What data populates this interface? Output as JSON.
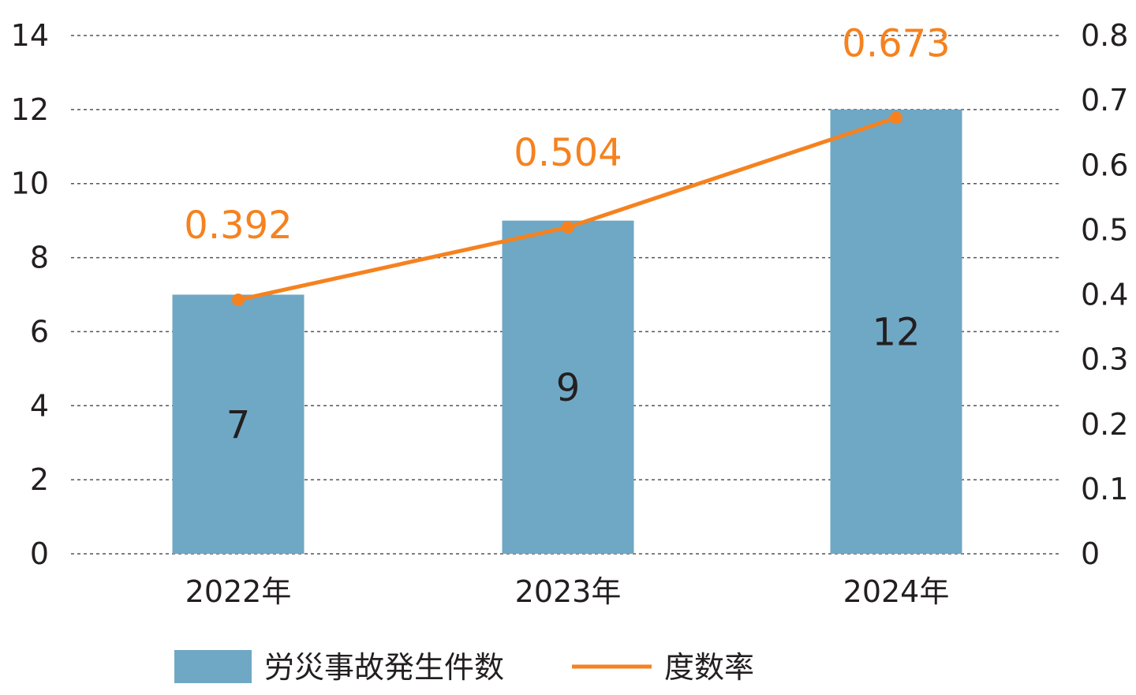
{
  "chart_data": {
    "type": "bar",
    "categories": [
      "2022年",
      "2023年",
      "2024年"
    ],
    "series": [
      {
        "name": "労災事故発生件数",
        "type": "bar",
        "axis": "left",
        "values": [
          7,
          9,
          12
        ],
        "color": "#6fa8c5"
      },
      {
        "name": "度数率",
        "type": "line",
        "axis": "right",
        "values": [
          0.392,
          0.504,
          0.673
        ],
        "labels": [
          "0.392",
          "0.504",
          "0.673"
        ],
        "color": "#f5821f"
      }
    ],
    "y_left": {
      "ylim": [
        0,
        14
      ],
      "ticks": [
        "0",
        "2",
        "4",
        "6",
        "8",
        "10",
        "12",
        "14"
      ]
    },
    "y_right": {
      "ylim": [
        0,
        0.8
      ],
      "ticks": [
        "0",
        "0.1",
        "0.2",
        "0.3",
        "0.4",
        "0.5",
        "0.6",
        "0.7",
        "0.8"
      ]
    },
    "grid": true,
    "legend": "bottom"
  }
}
